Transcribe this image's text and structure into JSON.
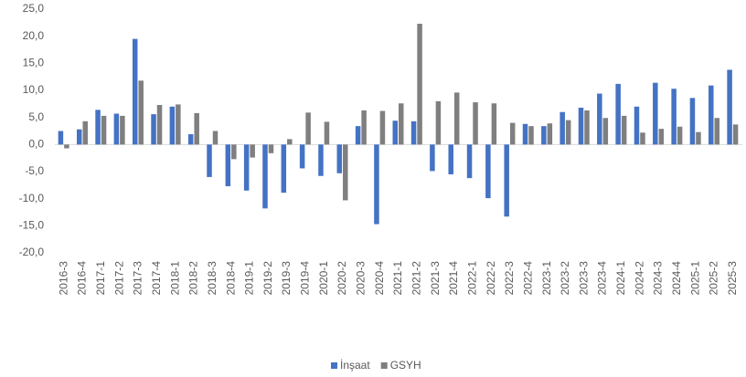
{
  "chart_data": {
    "type": "bar",
    "categories": [
      "2016-3",
      "2016-4",
      "2017-1",
      "2017-2",
      "2017-3",
      "2017-4",
      "2018-1",
      "2018-2",
      "2018-3",
      "2018-4",
      "2019-1",
      "2019-2",
      "2019-3",
      "2019-4",
      "2020-1",
      "2020-2",
      "2020-3",
      "2020-4",
      "2021-1",
      "2021-2",
      "2021-3",
      "2021-4",
      "2022-1",
      "2022-2",
      "2022-3",
      "2022-4",
      "2023-1",
      "2023-2",
      "2023-3",
      "2023-4",
      "2024-1",
      "2024-2",
      "2024-3",
      "2024-4",
      "2025-1",
      "2025-2",
      "2025-3"
    ],
    "series": [
      {
        "name": "İnşaat",
        "color": "#4472c4",
        "values": [
          2.5,
          2.8,
          6.4,
          5.7,
          19.5,
          5.6,
          7.0,
          1.9,
          -6.0,
          -7.7,
          -8.5,
          -11.8,
          -8.9,
          -4.4,
          -5.8,
          -5.3,
          3.4,
          -14.7,
          4.4,
          4.3,
          -4.9,
          -5.5,
          -6.2,
          -9.9,
          -13.3,
          3.8,
          3.4,
          6.0,
          6.8,
          9.4,
          11.2,
          7.0,
          11.4,
          10.3,
          8.6,
          10.9,
          13.8
        ]
      },
      {
        "name": "GSYH",
        "color": "#7f7f7f",
        "values": [
          -0.7,
          4.3,
          5.3,
          5.3,
          11.8,
          7.3,
          7.4,
          5.8,
          2.5,
          -2.7,
          -2.4,
          -1.6,
          1.0,
          5.9,
          4.2,
          -10.3,
          6.3,
          6.2,
          7.6,
          22.3,
          8.0,
          9.6,
          7.8,
          7.6,
          4.0,
          3.4,
          3.9,
          4.5,
          6.3,
          4.9,
          5.3,
          2.2,
          2.9,
          3.3,
          2.3,
          4.9,
          3.7
        ]
      }
    ],
    "ylim": [
      -20,
      25
    ],
    "yticks": [
      {
        "value": 25,
        "label": "25,0"
      },
      {
        "value": 20,
        "label": "20,0"
      },
      {
        "value": 15,
        "label": "15,0"
      },
      {
        "value": 10,
        "label": "10,0"
      },
      {
        "value": 5,
        "label": "5,0"
      },
      {
        "value": 0,
        "label": "0,0"
      },
      {
        "value": -5,
        "label": "-5,0"
      },
      {
        "value": -10,
        "label": "-10,0"
      },
      {
        "value": -15,
        "label": "-15,0"
      },
      {
        "value": -20,
        "label": "-20,0"
      }
    ],
    "legend": "bottom"
  }
}
